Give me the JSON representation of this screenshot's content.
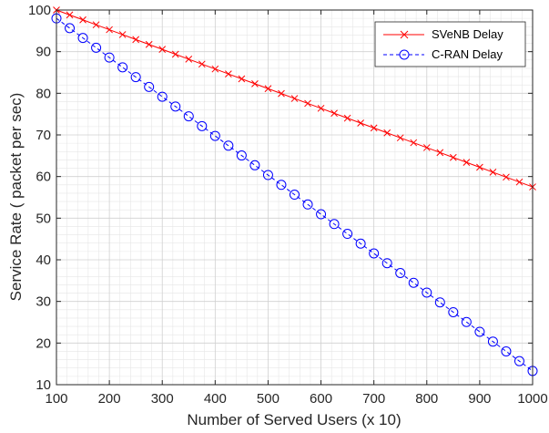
{
  "chart_data": {
    "type": "line",
    "title": "",
    "xlabel": "Number of Served Users (x 10)",
    "ylabel": "Service Rate ( packet per sec)",
    "xlim": [
      100,
      1000
    ],
    "ylim": [
      10,
      100
    ],
    "xticks": [
      100,
      200,
      300,
      400,
      500,
      600,
      700,
      800,
      900,
      1000
    ],
    "yticks": [
      10,
      20,
      30,
      40,
      50,
      60,
      70,
      80,
      90,
      100
    ],
    "grid": true,
    "minor_grid": true,
    "legend_position": "top-right",
    "series": [
      {
        "name": "SVeNB Delay",
        "color": "#ff0000",
        "line_style": "solid",
        "marker": "x",
        "x_start": 100,
        "x_end": 1000,
        "x_step": 25,
        "y_start": 100,
        "y_end": 57.5
      },
      {
        "name": "C-RAN Delay",
        "color": "#0000ff",
        "line_style": "dashed",
        "marker": "circle",
        "x_start": 100,
        "x_end": 1000,
        "x_step": 25,
        "y_start": 98,
        "y_end": 13.3
      }
    ]
  }
}
